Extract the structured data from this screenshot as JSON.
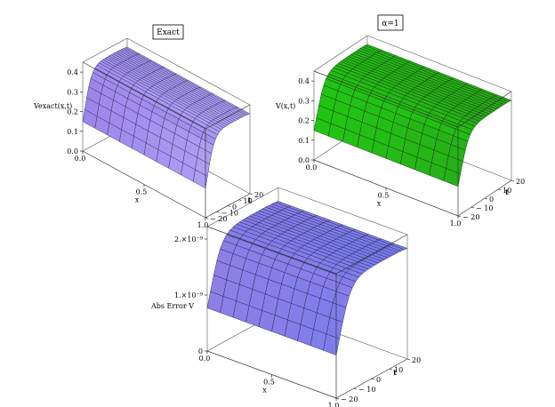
{
  "figure": {
    "panels": [
      {
        "title": "Exact",
        "zlabel": "Vexact(x,t)",
        "xlabel": "x",
        "tlabel": "t",
        "colors": {
          "top": "#c2b8ff",
          "mid": "#9d86ea",
          "low": "#b9d6f7",
          "mesh": "#2b2f63"
        }
      },
      {
        "title": "α=1",
        "zlabel": "V(x,t)",
        "xlabel": "x",
        "tlabel": "t",
        "colors": {
          "top": "#2e9a1e",
          "mid": "#22c414",
          "low": "#3be22c",
          "mesh": "#0c3a08"
        }
      },
      {
        "title": "",
        "zlabel": "Abs Error V",
        "xlabel": "x",
        "tlabel": "t",
        "colors": {
          "top": "#6f7af0",
          "mid": "#8d7fe6",
          "low": "#b7d4f4",
          "mesh": "#1e2559"
        }
      }
    ]
  },
  "chart_data": [
    {
      "type": "surface",
      "title": "Exact",
      "xlabel": "x",
      "ylabel": "t",
      "zlabel": "Vexact(x,t)",
      "xlim": [
        0,
        1
      ],
      "tlim": [
        -20,
        20
      ],
      "zlim": [
        0,
        0.45
      ],
      "x_ticks": [
        "0.0",
        "0.5",
        "1.0"
      ],
      "t_ticks": [
        "-20",
        "-10",
        "0",
        "10",
        "20"
      ],
      "z_ticks": [
        "0.0",
        "0.1",
        "0.2",
        "0.3",
        "0.4"
      ],
      "profile": {
        "plateau": 0.41,
        "baseline": 0.01,
        "rise_center": 0.05,
        "fall_center": 1.35,
        "width": 0.08
      }
    },
    {
      "type": "surface",
      "title": "α=1",
      "xlabel": "x",
      "ylabel": "t",
      "zlabel": "V(x,t)",
      "xlim": [
        0,
        1
      ],
      "tlim": [
        -20,
        20
      ],
      "zlim": [
        0,
        0.45
      ],
      "x_ticks": [
        "0.0",
        "0.5",
        "1.0"
      ],
      "t_ticks": [
        "-20",
        "-10",
        "0",
        "10",
        "20"
      ],
      "z_ticks": [
        "0.0",
        "0.1",
        "0.2",
        "0.3",
        "0.4"
      ],
      "profile": {
        "plateau": 0.41,
        "baseline": 0.01,
        "rise_center": 0.05,
        "fall_center": 1.35,
        "width": 0.08
      }
    },
    {
      "type": "surface",
      "title": "",
      "xlabel": "x",
      "ylabel": "t",
      "zlabel": "Abs Error V",
      "xlim": [
        0,
        1
      ],
      "tlim": [
        -20,
        20
      ],
      "zlim": [
        0,
        2e-09
      ],
      "x_ticks": [
        "0.0",
        "0.5",
        "1.0"
      ],
      "t_ticks": [
        "-20",
        "-10",
        "0",
        "10",
        "20"
      ],
      "z_ticks": [
        "0",
        "1.×10⁻⁹",
        "2.×10⁻⁹"
      ],
      "profile": {
        "plateau": 1.8e-09,
        "baseline": 1e-10,
        "rise_center": 0.05,
        "fall_center": 1.35,
        "width": 0.08
      }
    }
  ]
}
